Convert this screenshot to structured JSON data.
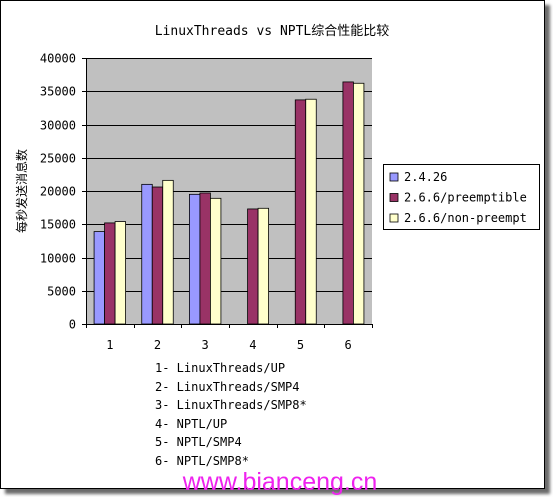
{
  "chart_data": {
    "type": "bar",
    "title": "LinuxThreads vs NPTL综合性能比较",
    "ylabel": "每秒发送消息数",
    "categories": [
      "1",
      "2",
      "3",
      "4",
      "5",
      "6"
    ],
    "series": [
      {
        "name": "2.4.26",
        "color": "#9999ff",
        "values": [
          13900,
          21000,
          19500,
          null,
          null,
          null
        ]
      },
      {
        "name": "2.6.6/preemptible",
        "color": "#993366",
        "values": [
          15200,
          20600,
          19700,
          17300,
          33700,
          36400
        ]
      },
      {
        "name": "2.6.6/non-preempt",
        "color": "#ffffcc",
        "values": [
          15400,
          21600,
          18900,
          17400,
          33800,
          36200
        ]
      }
    ],
    "ylim": [
      0,
      40000
    ],
    "yticks": [
      0,
      5000,
      10000,
      15000,
      20000,
      25000,
      30000,
      35000,
      40000
    ],
    "grid": {
      "horizontal": true,
      "vertical": false
    },
    "legend": {
      "placement": "right"
    },
    "plot_background": "#c0c0c0",
    "category_notes": [
      "1- LinuxThreads/UP",
      "2- LinuxThreads/SMP4",
      "3- LinuxThreads/SMP8*",
      "4- NPTL/UP",
      "5- NPTL/SMP4",
      "6- NPTL/SMP8*"
    ]
  },
  "watermark": {
    "text": "www.bianceng.cn",
    "color": "#ee22ee"
  }
}
